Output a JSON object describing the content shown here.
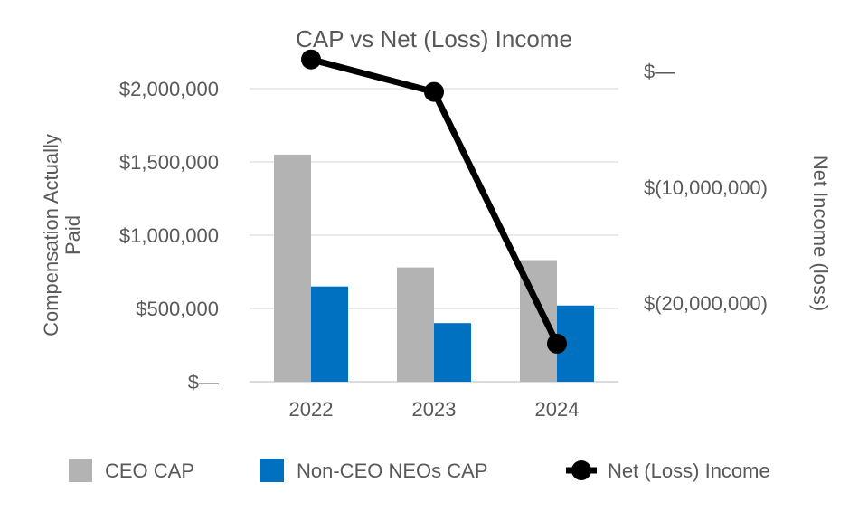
{
  "chart_data": {
    "type": "bar",
    "title": "CAP vs Net (Loss) Income",
    "categories": [
      "2022",
      "2023",
      "2024"
    ],
    "ylabel": "Compensation Actually Paid",
    "y2label": "Net Income (loss)",
    "ylim": [
      0,
      2000000
    ],
    "y2lim": [
      -26000000,
      1600000
    ],
    "y_ticks": [
      {
        "value": 0,
        "label": "$—"
      },
      {
        "value": 500000,
        "label": "$500,000"
      },
      {
        "value": 1000000,
        "label": "$1,000,000"
      },
      {
        "value": 1500000,
        "label": "$1,500,000"
      },
      {
        "value": 2000000,
        "label": "$2,000,000"
      }
    ],
    "y2_ticks": [
      {
        "value": 0,
        "label": "$—"
      },
      {
        "value": -10000000,
        "label": "$(10,000,000)"
      },
      {
        "value": -20000000,
        "label": "$(20,000,000)"
      }
    ],
    "grid": true,
    "legend_position": "bottom",
    "series": [
      {
        "name": "CEO CAP",
        "type": "bar",
        "axis": "left",
        "color": "#b3b3b3",
        "values": [
          1550000,
          780000,
          830000
        ]
      },
      {
        "name": "Non-CEO NEOs CAP",
        "type": "bar",
        "axis": "left",
        "color": "#0070c0",
        "values": [
          650000,
          400000,
          520000
        ]
      },
      {
        "name": "Net (Loss) Income",
        "type": "line",
        "axis": "right",
        "color": "#000000",
        "values": [
          1000000,
          -1800000,
          -23500000
        ]
      }
    ]
  }
}
